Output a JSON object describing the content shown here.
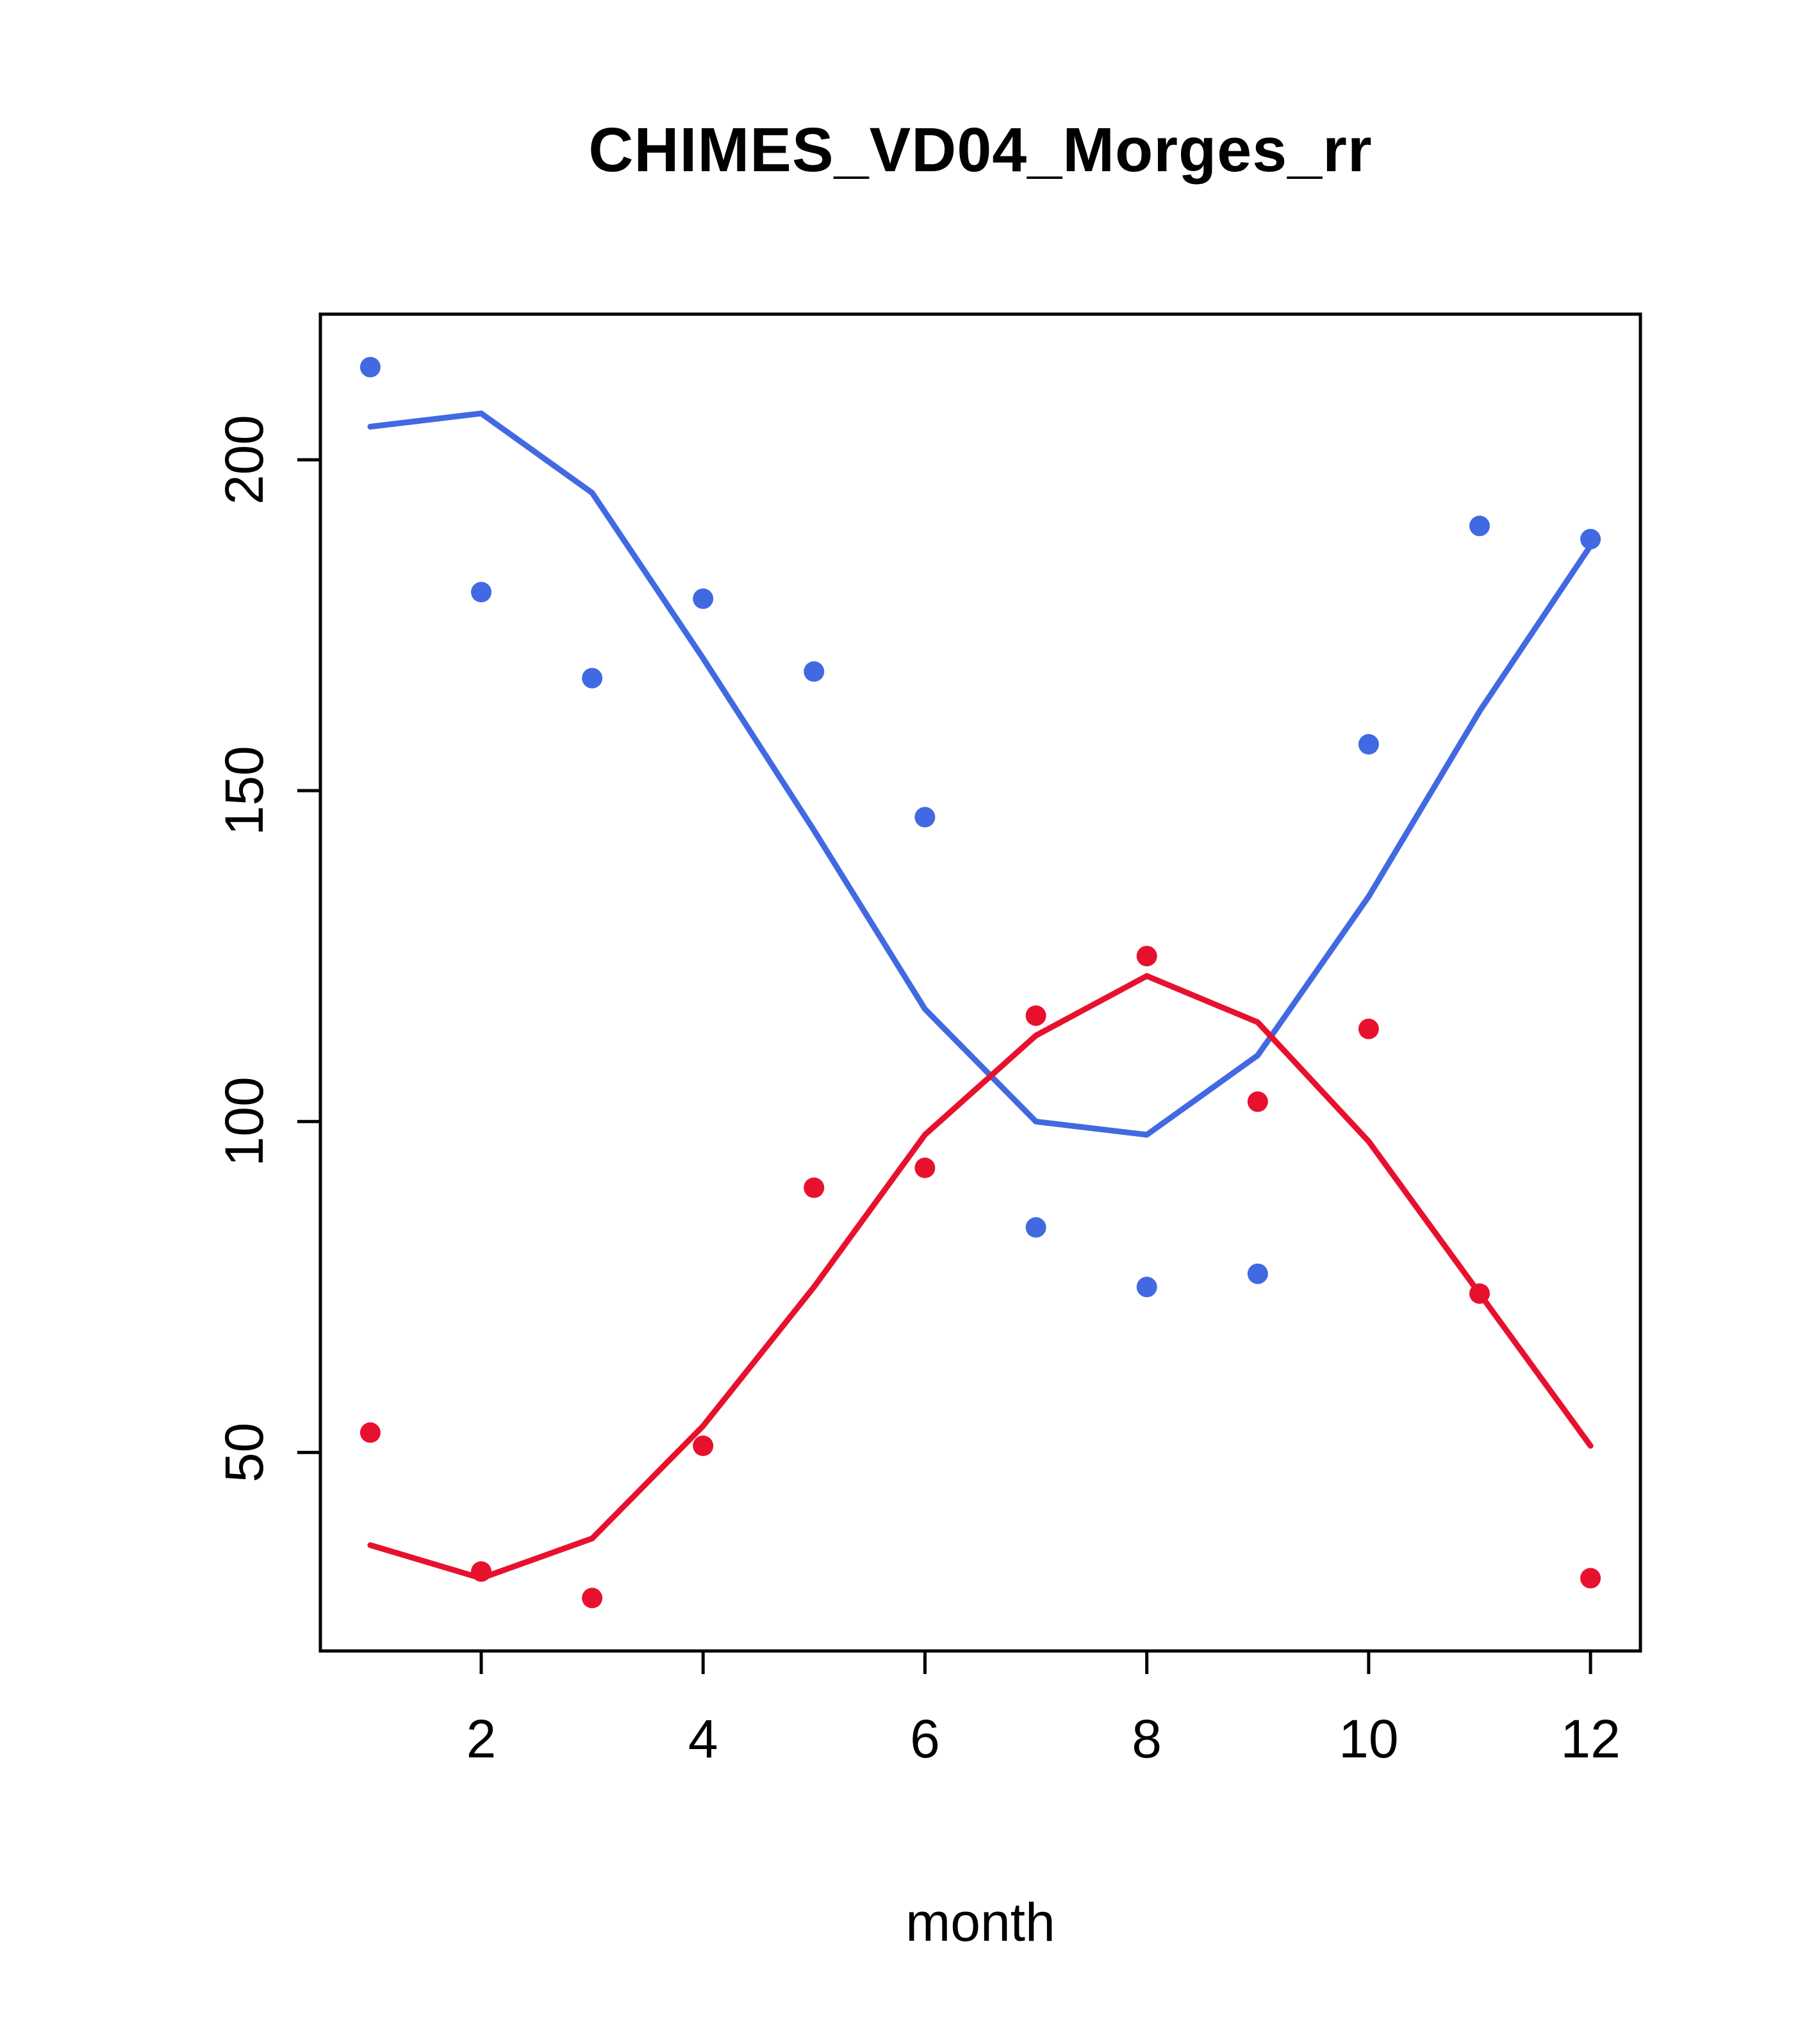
{
  "title": "CHIMES_VD04_Morges_rr",
  "xlabel": "month",
  "colors": {
    "blue": "#4169e1",
    "red": "#e8112d",
    "axis": "#000000",
    "background": "#ffffff"
  },
  "chart_data": {
    "type": "scatter",
    "title": "CHIMES_VD04_Morges_rr",
    "xlabel": "month",
    "ylabel": "",
    "x": [
      1,
      2,
      3,
      4,
      5,
      6,
      7,
      8,
      9,
      10,
      11,
      12
    ],
    "xticks": [
      2,
      4,
      6,
      8,
      10,
      12
    ],
    "yticks": [
      50,
      100,
      150,
      200
    ],
    "xlim": [
      0.55,
      12.45
    ],
    "ylim": [
      20,
      222
    ],
    "grid": false,
    "legend": "none",
    "series": [
      {
        "name": "blue-line",
        "style": "line",
        "color": "#4169e1",
        "values": [
          205,
          207,
          195,
          170,
          144,
          117,
          100,
          98,
          110,
          134,
          162,
          187
        ]
      },
      {
        "name": "blue-points",
        "style": "points",
        "color": "#4169e1",
        "values": [
          214,
          180,
          167,
          179,
          168,
          146,
          84,
          75,
          77,
          157,
          190,
          188
        ]
      },
      {
        "name": "red-line",
        "style": "line",
        "color": "#e8112d",
        "values": [
          36,
          31,
          37,
          54,
          75,
          98,
          113,
          122,
          115,
          97,
          74,
          51
        ]
      },
      {
        "name": "red-points",
        "style": "points",
        "color": "#e8112d",
        "values": [
          53,
          32,
          28,
          51,
          90,
          93,
          116,
          125,
          103,
          114,
          74,
          31
        ]
      }
    ]
  }
}
